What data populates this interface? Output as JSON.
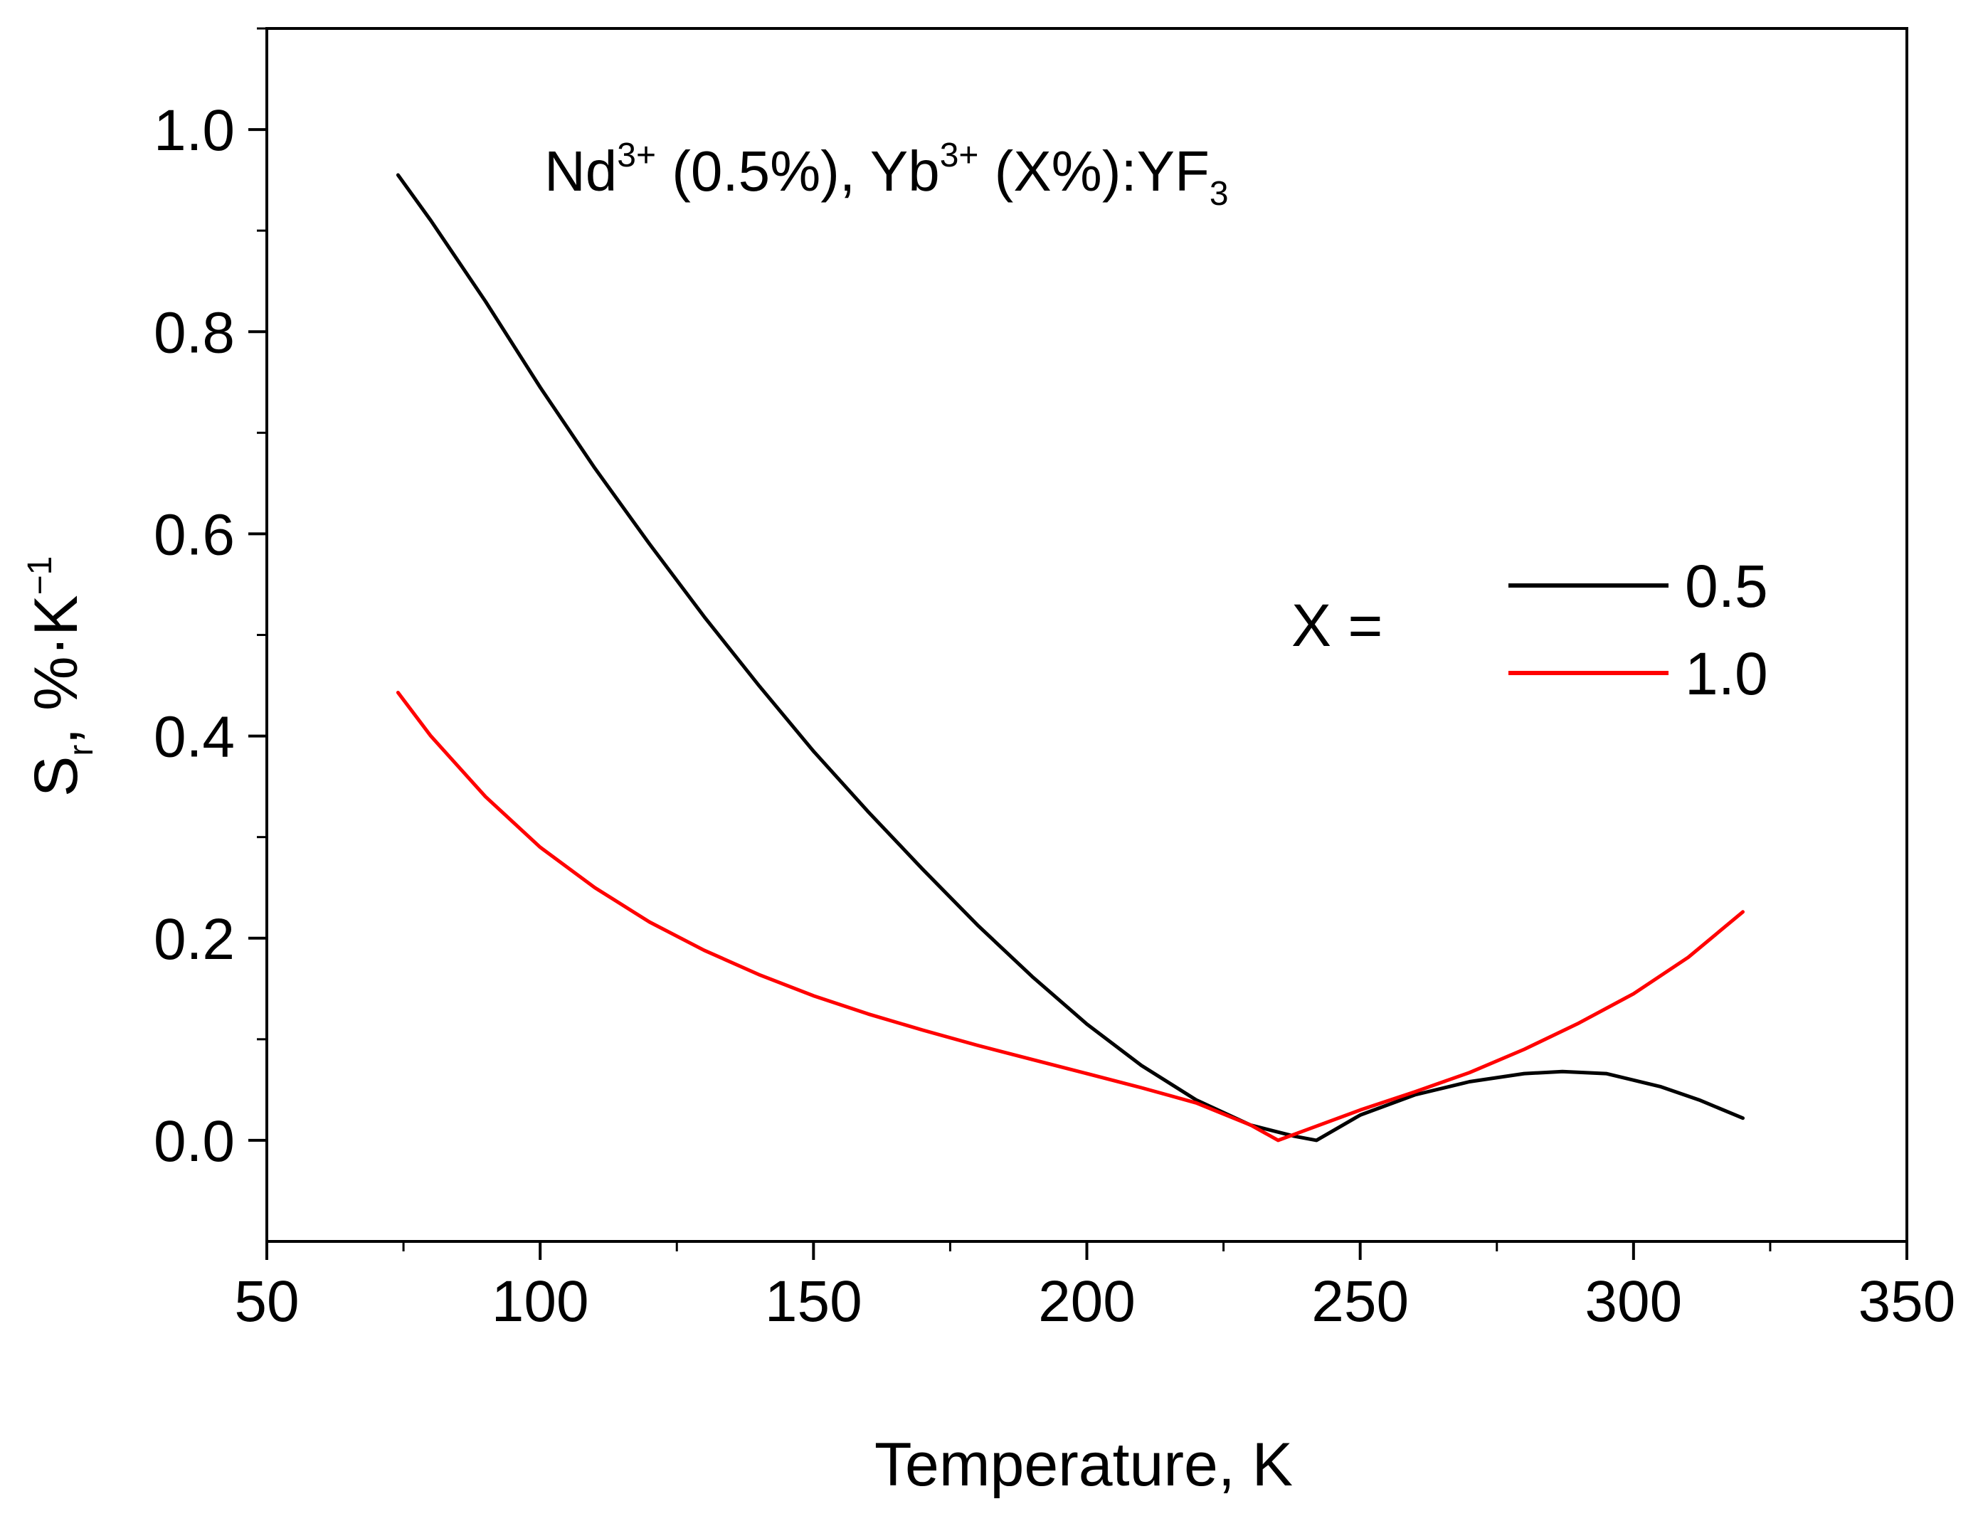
{
  "chart_data": {
    "type": "line",
    "title": "",
    "xlabel": "Temperature, K",
    "ylabel": {
      "main": "S",
      "sub": "r",
      "rest": ", %·K",
      "sup": "−1"
    },
    "xlim": [
      50,
      350
    ],
    "ylim": [
      -0.1,
      1.1
    ],
    "x_ticks": [
      50,
      100,
      150,
      200,
      250,
      300,
      350
    ],
    "x_tick_labels": [
      "50",
      "100",
      "150",
      "200",
      "250",
      "300",
      "350"
    ],
    "y_ticks": [
      0.0,
      0.2,
      0.4,
      0.6,
      0.8,
      1.0
    ],
    "y_tick_labels": [
      "0.0",
      "0.2",
      "0.4",
      "0.6",
      "0.8",
      "1.0"
    ],
    "grid": false,
    "annotation": {
      "part1": "Nd",
      "sup1": "3+",
      "part2": " (0.5%), Yb",
      "sup2": "3+",
      "part3": " (X%):YF",
      "sub3": "3"
    },
    "legend": {
      "placement": "right-middle",
      "prefix": "X =",
      "entries": [
        "0.5",
        "1.0"
      ]
    },
    "series": [
      {
        "name": "0.5",
        "color": "#000000",
        "x": [
          74,
          80,
          90,
          100,
          110,
          120,
          130,
          140,
          150,
          160,
          170,
          180,
          190,
          200,
          210,
          220,
          230,
          238,
          242,
          250,
          260,
          270,
          280,
          287,
          295,
          305,
          312,
          320
        ],
        "y": [
          0.955,
          0.91,
          0.83,
          0.745,
          0.665,
          0.59,
          0.518,
          0.45,
          0.385,
          0.325,
          0.268,
          0.213,
          0.162,
          0.115,
          0.074,
          0.04,
          0.015,
          0.004,
          0.0,
          0.025,
          0.045,
          0.058,
          0.066,
          0.068,
          0.066,
          0.053,
          0.04,
          0.022
        ]
      },
      {
        "name": "1.0",
        "color": "#ff0000",
        "x": [
          74,
          80,
          90,
          100,
          110,
          120,
          130,
          140,
          150,
          160,
          170,
          180,
          190,
          200,
          210,
          220,
          230,
          235,
          240,
          250,
          260,
          270,
          280,
          290,
          300,
          310,
          320
        ],
        "y": [
          0.443,
          0.4,
          0.34,
          0.29,
          0.25,
          0.216,
          0.188,
          0.164,
          0.143,
          0.125,
          0.109,
          0.094,
          0.08,
          0.066,
          0.052,
          0.037,
          0.015,
          0.0,
          0.01,
          0.03,
          0.048,
          0.067,
          0.09,
          0.116,
          0.145,
          0.181,
          0.226
        ]
      }
    ]
  }
}
